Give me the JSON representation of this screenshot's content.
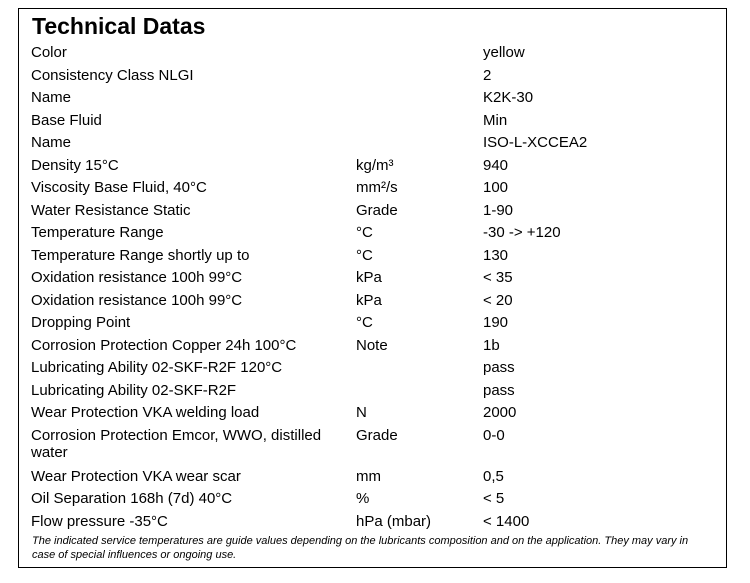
{
  "title": "Technical Datas",
  "rows": [
    {
      "name": "Color",
      "unit": "",
      "value": "yellow"
    },
    {
      "name": "Consistency Class NLGI",
      "unit": "",
      "value": "2"
    },
    {
      "name": "Name",
      "unit": "",
      "value": "K2K-30"
    },
    {
      "name": "Base Fluid",
      "unit": "",
      "value": "Min"
    },
    {
      "name": "Name",
      "unit": "",
      "value": "ISO-L-XCCEA2"
    },
    {
      "name": "Density 15°C",
      "unit": "kg/m³",
      "value": "940"
    },
    {
      "name": "Viscosity Base Fluid, 40°C",
      "unit": "mm²/s",
      "value": "100"
    },
    {
      "name": "Water Resistance Static",
      "unit": "Grade",
      "value": "1-90"
    },
    {
      "name": "Temperature Range",
      "unit": "°C",
      "value": "-30 -> +120"
    },
    {
      "name": "Temperature Range shortly up to",
      "unit": "°C",
      "value": "130"
    },
    {
      "name": "Oxidation resistance 100h 99°C",
      "unit": "kPa",
      "value": "< 35"
    },
    {
      "name": "Oxidation resistance 100h 99°C",
      "unit": "kPa",
      "value": "< 20"
    },
    {
      "name": "Dropping Point",
      "unit": "°C",
      "value": "190"
    },
    {
      "name": "Corrosion Protection Copper 24h 100°C",
      "unit": "Note",
      "value": "1b"
    },
    {
      "name": "Lubricating Ability 02-SKF-R2F 120°C",
      "unit": "",
      "value": "pass"
    },
    {
      "name": "Lubricating Ability 02-SKF-R2F",
      "unit": "",
      "value": "pass"
    },
    {
      "name": "Wear Protection VKA welding load",
      "unit": "N",
      "value": "2000"
    },
    {
      "name": "Corrosion Protection Emcor, WWO, distilled water",
      "unit": "Grade",
      "value": "0-0"
    },
    {
      "name": "Wear Protection VKA wear scar",
      "unit": "mm",
      "value": "0,5"
    },
    {
      "name": "Oil Separation 168h (7d) 40°C",
      "unit": "%",
      "value": "< 5"
    },
    {
      "name": "Flow pressure -35°C",
      "unit": "hPa (mbar)",
      "value": "< 1400"
    }
  ],
  "footnote": "The indicated service temperatures are guide values depending on the lubricants composition and on the application. They may vary in case of special influences or ongoing use."
}
